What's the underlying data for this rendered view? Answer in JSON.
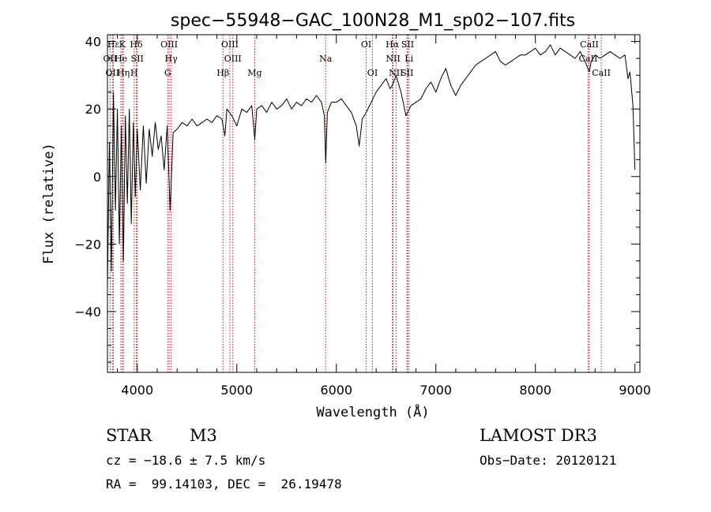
{
  "chart_data": {
    "type": "line",
    "title": "spec−55948−GAC_100N28_M1_sp02−107.fits",
    "xlabel": "Wavelength (Å)",
    "ylabel": "Flux (relative)",
    "xlim": [
      3700,
      9050
    ],
    "ylim": [
      -58,
      42
    ],
    "xticks": [
      {
        "v": 4000,
        "label": "4000"
      },
      {
        "v": 5000,
        "label": "5000"
      },
      {
        "v": 6000,
        "label": "6000"
      },
      {
        "v": 7000,
        "label": "7000"
      },
      {
        "v": 8000,
        "label": "8000"
      },
      {
        "v": 9000,
        "label": "9000"
      }
    ],
    "yticks": [
      {
        "v": 40,
        "label": "40"
      },
      {
        "v": 20,
        "label": "20"
      },
      {
        "v": 0,
        "label": "0"
      },
      {
        "v": -20,
        "label": "−20"
      },
      {
        "v": -40,
        "label": "−40"
      }
    ],
    "x_minor_step": 200,
    "y_minor_step": 5,
    "series": [
      {
        "name": "spectrum",
        "points": [
          [
            3700,
            -32
          ],
          [
            3720,
            10
          ],
          [
            3740,
            -28
          ],
          [
            3760,
            25
          ],
          [
            3780,
            -10
          ],
          [
            3800,
            20
          ],
          [
            3820,
            -20
          ],
          [
            3840,
            15
          ],
          [
            3860,
            -25
          ],
          [
            3880,
            18
          ],
          [
            3900,
            -8
          ],
          [
            3920,
            20
          ],
          [
            3940,
            -14
          ],
          [
            3960,
            16
          ],
          [
            3980,
            -6
          ],
          [
            4000,
            14
          ],
          [
            4030,
            -4
          ],
          [
            4060,
            15
          ],
          [
            4090,
            -2
          ],
          [
            4120,
            14
          ],
          [
            4150,
            6
          ],
          [
            4180,
            16
          ],
          [
            4210,
            8
          ],
          [
            4240,
            12
          ],
          [
            4270,
            2
          ],
          [
            4300,
            15
          ],
          [
            4330,
            -10
          ],
          [
            4360,
            13
          ],
          [
            4400,
            14
          ],
          [
            4450,
            16
          ],
          [
            4500,
            15
          ],
          [
            4550,
            17
          ],
          [
            4600,
            15
          ],
          [
            4650,
            16
          ],
          [
            4700,
            17
          ],
          [
            4750,
            16
          ],
          [
            4800,
            18
          ],
          [
            4850,
            17
          ],
          [
            4880,
            12
          ],
          [
            4900,
            20
          ],
          [
            4950,
            18
          ],
          [
            5000,
            15
          ],
          [
            5050,
            20
          ],
          [
            5100,
            19
          ],
          [
            5150,
            21
          ],
          [
            5180,
            11
          ],
          [
            5200,
            20
          ],
          [
            5250,
            21
          ],
          [
            5300,
            19
          ],
          [
            5350,
            22
          ],
          [
            5400,
            20
          ],
          [
            5450,
            21
          ],
          [
            5500,
            23
          ],
          [
            5550,
            20
          ],
          [
            5600,
            22
          ],
          [
            5650,
            21
          ],
          [
            5700,
            23
          ],
          [
            5750,
            22
          ],
          [
            5800,
            24
          ],
          [
            5850,
            22
          ],
          [
            5880,
            18
          ],
          [
            5893,
            4
          ],
          [
            5910,
            19
          ],
          [
            5950,
            22
          ],
          [
            6000,
            22
          ],
          [
            6050,
            23
          ],
          [
            6100,
            21
          ],
          [
            6150,
            19
          ],
          [
            6200,
            15
          ],
          [
            6230,
            9
          ],
          [
            6260,
            17
          ],
          [
            6300,
            19
          ],
          [
            6350,
            22
          ],
          [
            6400,
            25
          ],
          [
            6450,
            27
          ],
          [
            6500,
            29
          ],
          [
            6540,
            26
          ],
          [
            6563,
            27
          ],
          [
            6600,
            30
          ],
          [
            6650,
            25
          ],
          [
            6700,
            18
          ],
          [
            6750,
            21
          ],
          [
            6800,
            22
          ],
          [
            6850,
            23
          ],
          [
            6900,
            26
          ],
          [
            6950,
            28
          ],
          [
            7000,
            25
          ],
          [
            7050,
            29
          ],
          [
            7100,
            32
          ],
          [
            7150,
            27
          ],
          [
            7200,
            24
          ],
          [
            7250,
            27
          ],
          [
            7300,
            29
          ],
          [
            7350,
            31
          ],
          [
            7400,
            33
          ],
          [
            7450,
            34
          ],
          [
            7500,
            35
          ],
          [
            7550,
            36
          ],
          [
            7600,
            37
          ],
          [
            7650,
            34
          ],
          [
            7700,
            33
          ],
          [
            7750,
            34
          ],
          [
            7800,
            35
          ],
          [
            7850,
            36
          ],
          [
            7900,
            36
          ],
          [
            7950,
            37
          ],
          [
            8000,
            38
          ],
          [
            8050,
            36
          ],
          [
            8100,
            37
          ],
          [
            8150,
            39
          ],
          [
            8200,
            36
          ],
          [
            8250,
            38
          ],
          [
            8300,
            37
          ],
          [
            8350,
            36
          ],
          [
            8400,
            35
          ],
          [
            8450,
            37
          ],
          [
            8500,
            34
          ],
          [
            8542,
            31
          ],
          [
            8560,
            34
          ],
          [
            8600,
            36
          ],
          [
            8650,
            35
          ],
          [
            8700,
            36
          ],
          [
            8750,
            37
          ],
          [
            8800,
            36
          ],
          [
            8850,
            35
          ],
          [
            8900,
            36
          ],
          [
            8930,
            29
          ],
          [
            8950,
            31
          ],
          [
            8980,
            21
          ],
          [
            9000,
            2
          ]
        ]
      }
    ],
    "lines": [
      {
        "name": "Hε",
        "x": 3760,
        "row": 0
      },
      {
        "name": "K",
        "x": 3850,
        "row": 0
      },
      {
        "name": "Hδ",
        "x": 3990,
        "row": 0
      },
      {
        "name": "OIII",
        "x": 4320,
        "row": 0
      },
      {
        "name": "OIII",
        "x": 4930,
        "row": 0
      },
      {
        "name": "OI",
        "x": 6300,
        "row": 0
      },
      {
        "name": "Hα",
        "x": 6563,
        "row": 0
      },
      {
        "name": "SII",
        "x": 6716,
        "row": 0
      },
      {
        "name": "CaII",
        "x": 8542,
        "row": 0
      },
      {
        "name": "OII",
        "x": 3727,
        "row": 1
      },
      {
        "name": "He",
        "x": 3835,
        "row": 1
      },
      {
        "name": "SII",
        "x": 4000,
        "row": 1
      },
      {
        "name": "Hγ",
        "x": 4340,
        "row": 1
      },
      {
        "name": "OIII",
        "x": 4960,
        "row": 1
      },
      {
        "name": "Na",
        "x": 5893,
        "row": 1
      },
      {
        "name": "NII",
        "x": 6570,
        "row": 1
      },
      {
        "name": "Li",
        "x": 6730,
        "row": 1
      },
      {
        "name": "CaII",
        "x": 8530,
        "row": 1
      },
      {
        "name": "OII",
        "x": 3750,
        "row": 2
      },
      {
        "name": "Hη",
        "x": 3860,
        "row": 2
      },
      {
        "name": "H",
        "x": 3968,
        "row": 2
      },
      {
        "name": "G",
        "x": 4305,
        "row": 2
      },
      {
        "name": "Hβ",
        "x": 4861,
        "row": 2
      },
      {
        "name": "Mg",
        "x": 5180,
        "row": 2
      },
      {
        "name": "OI",
        "x": 6363,
        "row": 2
      },
      {
        "name": "NII",
        "x": 6600,
        "row": 2
      },
      {
        "name": "SII",
        "x": 6710,
        "row": 2
      },
      {
        "name": "CaII",
        "x": 8662,
        "row": 2
      }
    ]
  },
  "info": {
    "object_type": "STAR",
    "subclass": "M3",
    "survey": "LAMOST DR3",
    "redshift": "cz = −18.6 ± 7.5 km/s",
    "obs_date": "Obs−Date: 20120121",
    "coords": "RA =  99.14103, DEC =  26.19478"
  }
}
